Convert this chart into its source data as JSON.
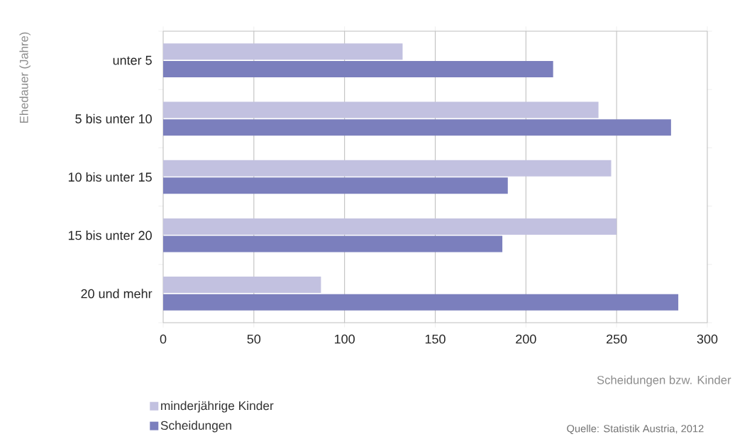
{
  "chart_data": {
    "type": "bar",
    "orientation": "horizontal",
    "categories": [
      "unter 5",
      "5 bis unter 10",
      "10 bis unter 15",
      "15 bis unter 20",
      "20 und mehr"
    ],
    "series": [
      {
        "name": "minderjährige Kinder",
        "color": "#c2c1e0",
        "values": [
          132,
          240,
          247,
          250,
          87
        ]
      },
      {
        "name": "Scheidungen",
        "color": "#7b7fbd",
        "values": [
          215,
          280,
          190,
          187,
          284
        ]
      }
    ],
    "xlim": [
      0,
      300
    ],
    "xticks": [
      0,
      50,
      100,
      150,
      200,
      250,
      300
    ],
    "xlabel": "Scheidungen bzw. Kinder",
    "ylabel": "Ehedauer (Jahre)",
    "annotations": [
      "Quelle: Statistik Austria, 2012"
    ],
    "grid": "x",
    "legend": "bottom left"
  }
}
